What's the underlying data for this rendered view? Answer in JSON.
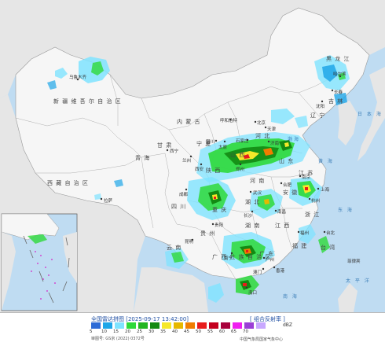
{
  "legend": {
    "title": "全国雷达拼图 [2025-09-17 13:42:00]",
    "product": "[ 组合反射率 ]",
    "unit": "dBZ",
    "map_number": "审图号: GS京 (2022) 0372号",
    "source": "中国气象局国家气象中心",
    "levels": [
      {
        "value": "5",
        "color": "#2d6bd6"
      },
      {
        "value": "10",
        "color": "#1fa6e8"
      },
      {
        "value": "15",
        "color": "#7fe3ff"
      },
      {
        "value": "20",
        "color": "#2ed93a"
      },
      {
        "value": "25",
        "color": "#22b522"
      },
      {
        "value": "30",
        "color": "#138a13"
      },
      {
        "value": "35",
        "color": "#f5e82a"
      },
      {
        "value": "40",
        "color": "#e6b800"
      },
      {
        "value": "45",
        "color": "#f07c00"
      },
      {
        "value": "50",
        "color": "#e81c1c"
      },
      {
        "value": "55",
        "color": "#c4001e"
      },
      {
        "value": "60",
        "color": "#a8003c"
      },
      {
        "value": "65",
        "color": "#f01ef0"
      },
      {
        "value": "70",
        "color": "#9b3fd6"
      },
      {
        "value": "",
        "color": "#c8a8ff"
      }
    ]
  },
  "regions": {
    "xinjiang": "新 疆 维 吾 尔 自 治 区",
    "xizang": "西 藏 自 治 区",
    "qinghai": "青 海",
    "inner_mongolia": "内 蒙 古",
    "heilongjiang": "黑 龙 江",
    "jilin": "吉 林",
    "liaoning": "辽 宁",
    "gansu": "甘 肃",
    "ningxia": "宁 夏",
    "shaanxi": "陕 西",
    "shanxi": "山 西",
    "hebei": "河 北",
    "shandong": "山 东",
    "henan": "河 南",
    "hubei": "湖 北",
    "anhui": "安 徽",
    "jiangsu": "江 苏",
    "zhejiang": "浙 江",
    "sichuan": "四 川",
    "chongqing": "重 庆",
    "yunnan": "云 南",
    "guizhou": "贵 州",
    "hunan": "湖 南",
    "jiangxi": "江 西",
    "fujian": "福 建",
    "guangxi": "广 西 壮 族 自 治 区",
    "guangdong": "广 东",
    "taiwan": "台 湾"
  },
  "cities": {
    "urumqi": "乌鲁木齐",
    "lhasa": "拉萨",
    "xining": "西宁",
    "lanzhou": "兰州",
    "yinchuan": "银川",
    "hohhot": "呼和浩特",
    "beijing": "北京",
    "tianjin": "天津",
    "shijiazhuang": "石家庄",
    "taiyuan": "太原",
    "jinan": "济南",
    "xian": "西安",
    "zhengzhou": "郑州",
    "harbin": "哈尔滨",
    "changchun": "长春",
    "shenyang": "沈阳",
    "chengdu": "成都",
    "wuhan": "武汉",
    "hefei": "合肥",
    "nanjing": "南京",
    "shanghai": "上海",
    "hangzhou": "杭州",
    "changsha": "长沙",
    "nanchang": "南昌",
    "fuzhou": "福州",
    "guiyang": "贵阳",
    "kunming": "昆明",
    "nanning": "南宁",
    "guangzhou": "广州",
    "taipei": "台北",
    "hongkong": "香港",
    "macao": "澳门",
    "haikou": "海口"
  },
  "seas": {
    "bohai": "渤海",
    "yellow_sea": "黄 海",
    "east_china_sea": "东 海",
    "pacific": "太 平 洋",
    "sea_of_japan": "日 本 海",
    "south_china_sea": "南 海",
    "philippines": "菲律宾"
  }
}
